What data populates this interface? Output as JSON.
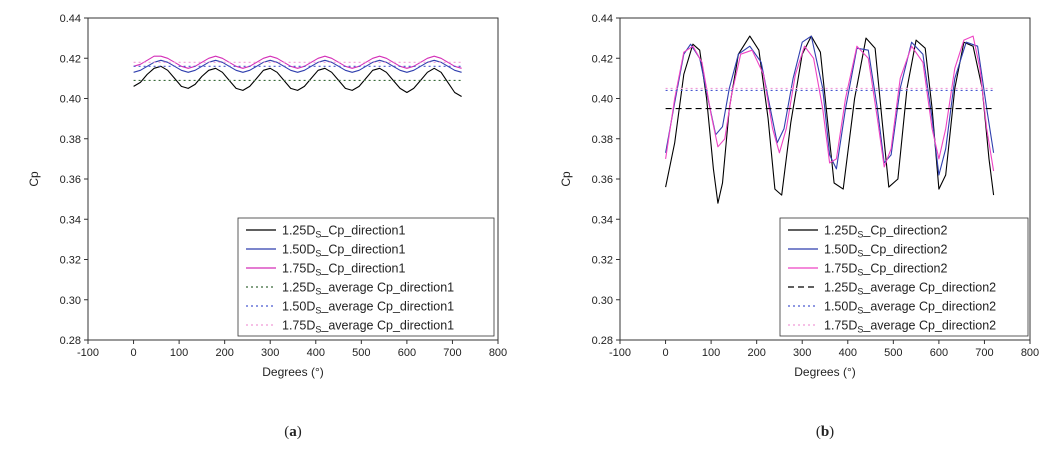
{
  "chart_data": [
    {
      "type": "line",
      "panel_label_pre": "(",
      "panel_label": "a",
      "panel_label_post": ")",
      "xlabel": "Degrees (°)",
      "ylabel": "Cp",
      "xlim": [
        -100,
        800
      ],
      "ylim": [
        0.28,
        0.44
      ],
      "xticks": [
        "-100",
        "0",
        "100",
        "200",
        "300",
        "400",
        "500",
        "600",
        "700",
        "800"
      ],
      "yticks": [
        "0.28",
        "0.30",
        "0.32",
        "0.34",
        "0.36",
        "0.38",
        "0.40",
        "0.42",
        "0.44"
      ],
      "legend_position": "bottom-right",
      "series": [
        {
          "name_pre": "1.25D",
          "name_sub": "S",
          "name_post": "_Cp_direction1",
          "color": "#000000",
          "style": "solid",
          "x": [
            0,
            15,
            30,
            45,
            60,
            75,
            90,
            105,
            120,
            135,
            150,
            165,
            180,
            195,
            210,
            225,
            240,
            255,
            270,
            285,
            300,
            315,
            330,
            345,
            360,
            375,
            390,
            405,
            420,
            435,
            450,
            465,
            480,
            495,
            510,
            525,
            540,
            555,
            570,
            585,
            600,
            615,
            630,
            645,
            660,
            675,
            690,
            705,
            720
          ],
          "y": [
            0.406,
            0.408,
            0.412,
            0.415,
            0.416,
            0.414,
            0.41,
            0.406,
            0.405,
            0.407,
            0.411,
            0.414,
            0.415,
            0.413,
            0.409,
            0.405,
            0.404,
            0.406,
            0.41,
            0.414,
            0.415,
            0.413,
            0.409,
            0.405,
            0.404,
            0.406,
            0.41,
            0.414,
            0.415,
            0.413,
            0.409,
            0.405,
            0.404,
            0.406,
            0.41,
            0.414,
            0.415,
            0.413,
            0.409,
            0.405,
            0.403,
            0.405,
            0.409,
            0.413,
            0.415,
            0.413,
            0.408,
            0.403,
            0.401
          ]
        },
        {
          "name_pre": "1.50D",
          "name_sub": "S",
          "name_post": "_Cp_direction1",
          "color": "#2f3fae",
          "style": "solid",
          "x": [
            0,
            15,
            30,
            45,
            60,
            75,
            90,
            105,
            120,
            135,
            150,
            165,
            180,
            195,
            210,
            225,
            240,
            255,
            270,
            285,
            300,
            315,
            330,
            345,
            360,
            375,
            390,
            405,
            420,
            435,
            450,
            465,
            480,
            495,
            510,
            525,
            540,
            555,
            570,
            585,
            600,
            615,
            630,
            645,
            660,
            675,
            690,
            705,
            720
          ],
          "y": [
            0.413,
            0.414,
            0.416,
            0.418,
            0.419,
            0.418,
            0.416,
            0.414,
            0.413,
            0.414,
            0.416,
            0.418,
            0.419,
            0.418,
            0.416,
            0.414,
            0.413,
            0.414,
            0.416,
            0.418,
            0.419,
            0.418,
            0.416,
            0.414,
            0.413,
            0.414,
            0.416,
            0.418,
            0.419,
            0.418,
            0.416,
            0.414,
            0.413,
            0.414,
            0.416,
            0.418,
            0.419,
            0.418,
            0.416,
            0.414,
            0.413,
            0.414,
            0.416,
            0.418,
            0.419,
            0.418,
            0.416,
            0.414,
            0.413
          ]
        },
        {
          "name_pre": "1.75D",
          "name_sub": "S",
          "name_post": "_Cp_direction1",
          "color": "#d42fb8",
          "style": "solid",
          "x": [
            0,
            15,
            30,
            45,
            60,
            75,
            90,
            105,
            120,
            135,
            150,
            165,
            180,
            195,
            210,
            225,
            240,
            255,
            270,
            285,
            300,
            315,
            330,
            345,
            360,
            375,
            390,
            405,
            420,
            435,
            450,
            465,
            480,
            495,
            510,
            525,
            540,
            555,
            570,
            585,
            600,
            615,
            630,
            645,
            660,
            675,
            690,
            705,
            720
          ],
          "y": [
            0.416,
            0.417,
            0.419,
            0.421,
            0.421,
            0.42,
            0.418,
            0.416,
            0.415,
            0.416,
            0.418,
            0.42,
            0.421,
            0.42,
            0.418,
            0.416,
            0.415,
            0.416,
            0.418,
            0.42,
            0.421,
            0.42,
            0.418,
            0.416,
            0.415,
            0.416,
            0.418,
            0.42,
            0.421,
            0.42,
            0.418,
            0.416,
            0.415,
            0.416,
            0.418,
            0.42,
            0.421,
            0.42,
            0.418,
            0.416,
            0.415,
            0.416,
            0.418,
            0.42,
            0.421,
            0.42,
            0.418,
            0.416,
            0.415
          ]
        },
        {
          "name_pre": "1.25D",
          "name_sub": "S",
          "name_post": "_average Cp_direction1",
          "color": "#3a6a3a",
          "style": "dotted",
          "x": [
            0,
            720
          ],
          "y": [
            0.409,
            0.409
          ]
        },
        {
          "name_pre": "1.50D",
          "name_sub": "S",
          "name_post": "_average Cp_direction1",
          "color": "#4a5ad0",
          "style": "dotted",
          "x": [
            0,
            720
          ],
          "y": [
            0.416,
            0.416
          ]
        },
        {
          "name_pre": "1.75D",
          "name_sub": "S",
          "name_post": "_average Cp_direction1",
          "color": "#f09ad8",
          "style": "dotted",
          "x": [
            0,
            720
          ],
          "y": [
            0.418,
            0.418
          ]
        }
      ]
    },
    {
      "type": "line",
      "panel_label_pre": "(",
      "panel_label": "b",
      "panel_label_post": ")",
      "xlabel": "Degrees (°)",
      "ylabel": "Cp",
      "xlim": [
        -100,
        800
      ],
      "ylim": [
        0.28,
        0.44
      ],
      "xticks": [
        "-100",
        "0",
        "100",
        "200",
        "300",
        "400",
        "500",
        "600",
        "700",
        "800"
      ],
      "yticks": [
        "0.28",
        "0.30",
        "0.32",
        "0.34",
        "0.36",
        "0.38",
        "0.40",
        "0.42",
        "0.44"
      ],
      "legend_position": "bottom-right",
      "series": [
        {
          "name_pre": "1.25D",
          "name_sub": "S",
          "name_post": "_Cp_direction2",
          "color": "#000000",
          "style": "solid",
          "x": [
            0,
            20,
            40,
            60,
            75,
            90,
            105,
            115,
            125,
            140,
            160,
            185,
            205,
            225,
            240,
            255,
            275,
            300,
            320,
            340,
            355,
            370,
            390,
            415,
            440,
            460,
            475,
            490,
            510,
            530,
            550,
            570,
            585,
            600,
            615,
            635,
            655,
            675,
            695,
            710,
            720
          ],
          "y": [
            0.356,
            0.378,
            0.412,
            0.427,
            0.424,
            0.4,
            0.365,
            0.348,
            0.358,
            0.395,
            0.422,
            0.431,
            0.424,
            0.39,
            0.355,
            0.352,
            0.388,
            0.422,
            0.431,
            0.423,
            0.39,
            0.358,
            0.355,
            0.4,
            0.43,
            0.425,
            0.39,
            0.356,
            0.36,
            0.405,
            0.429,
            0.425,
            0.395,
            0.355,
            0.362,
            0.405,
            0.428,
            0.426,
            0.405,
            0.37,
            0.352
          ]
        },
        {
          "name_pre": "1.50D",
          "name_sub": "S",
          "name_post": "_Cp_direction2",
          "color": "#2f3fae",
          "style": "solid",
          "x": [
            0,
            20,
            40,
            55,
            75,
            95,
            110,
            125,
            140,
            160,
            185,
            210,
            230,
            245,
            260,
            280,
            300,
            320,
            345,
            360,
            375,
            395,
            420,
            445,
            465,
            480,
            495,
            515,
            540,
            565,
            585,
            600,
            615,
            635,
            660,
            685,
            705,
            720
          ],
          "y": [
            0.373,
            0.398,
            0.422,
            0.427,
            0.42,
            0.398,
            0.382,
            0.386,
            0.405,
            0.422,
            0.426,
            0.418,
            0.395,
            0.378,
            0.385,
            0.41,
            0.428,
            0.431,
            0.405,
            0.372,
            0.365,
            0.395,
            0.425,
            0.424,
            0.395,
            0.368,
            0.372,
            0.405,
            0.428,
            0.422,
            0.39,
            0.362,
            0.375,
            0.41,
            0.428,
            0.426,
            0.395,
            0.373
          ]
        },
        {
          "name_pre": "1.75D",
          "name_sub": "S",
          "name_post": "_Cp_direction2",
          "color": "#ee44c4",
          "style": "solid",
          "x": [
            0,
            20,
            40,
            60,
            80,
            100,
            115,
            130,
            145,
            165,
            190,
            215,
            235,
            250,
            265,
            285,
            305,
            325,
            345,
            360,
            375,
            395,
            420,
            445,
            465,
            480,
            495,
            515,
            540,
            565,
            585,
            600,
            615,
            635,
            655,
            675,
            690,
            705,
            720
          ],
          "y": [
            0.37,
            0.4,
            0.423,
            0.426,
            0.418,
            0.392,
            0.376,
            0.38,
            0.402,
            0.422,
            0.424,
            0.412,
            0.385,
            0.373,
            0.385,
            0.412,
            0.426,
            0.42,
            0.395,
            0.368,
            0.37,
            0.4,
            0.426,
            0.42,
            0.39,
            0.366,
            0.375,
            0.41,
            0.426,
            0.418,
            0.385,
            0.37,
            0.385,
            0.415,
            0.429,
            0.431,
            0.415,
            0.385,
            0.364
          ]
        },
        {
          "name_pre": "1.25D",
          "name_sub": "S",
          "name_post": "_average Cp_direction2",
          "color": "#000000",
          "style": "dashed",
          "x": [
            0,
            720
          ],
          "y": [
            0.395,
            0.395
          ]
        },
        {
          "name_pre": "1.50D",
          "name_sub": "S",
          "name_post": "_average Cp_direction2",
          "color": "#4a5ad0",
          "style": "dotted",
          "x": [
            0,
            720
          ],
          "y": [
            0.404,
            0.404
          ]
        },
        {
          "name_pre": "1.75D",
          "name_sub": "S",
          "name_post": "_average Cp_direction2",
          "color": "#f09ad8",
          "style": "dotted",
          "x": [
            0,
            720
          ],
          "y": [
            0.405,
            0.405
          ]
        }
      ]
    }
  ]
}
